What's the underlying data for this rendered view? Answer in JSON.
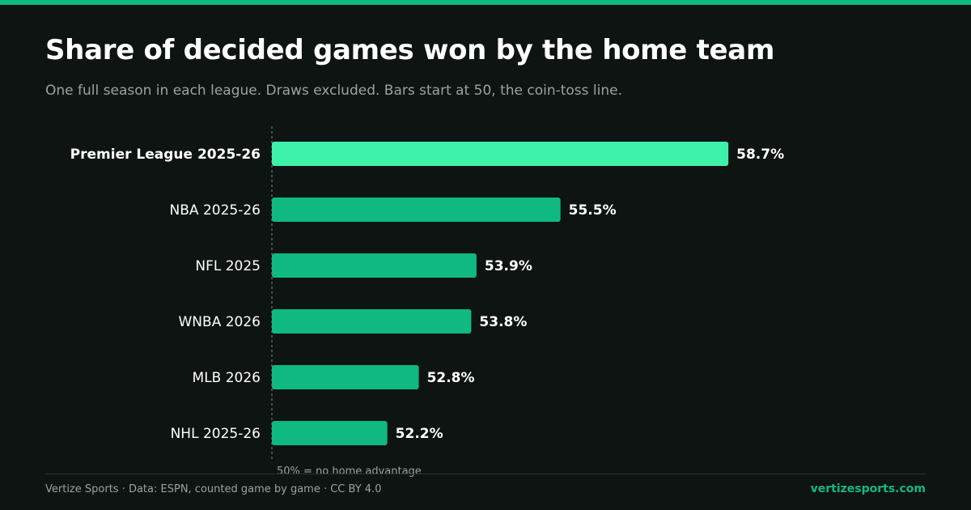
{
  "page": {
    "title": "Share of decided games won by the home team",
    "subtitle": "One full season in each league. Draws excluded. Bars start at 50, the coin-toss line.",
    "footer_left": "Vertize Sports · Data: ESPN, counted game by game · CC BY 4.0",
    "footer_right": "vertizesports.com"
  },
  "colors": {
    "background": "#0e1412",
    "accent": "#10b981",
    "highlight": "#3ef2ac",
    "bar": "#10b981",
    "text": "#ffffff",
    "muted": "#9aa3a0"
  },
  "chart_data": {
    "type": "bar",
    "orientation": "horizontal",
    "baseline": 50,
    "baseline_label": "50% = no home advantage",
    "xlim": [
      50,
      59.7
    ],
    "categories": [
      "Premier League 2025-26",
      "NBA 2025-26",
      "NFL 2025",
      "WNBA 2026",
      "MLB 2026",
      "NHL 2025-26"
    ],
    "values": [
      58.7,
      55.5,
      53.9,
      53.8,
      52.8,
      52.2
    ],
    "value_labels": [
      "58.7%",
      "55.5%",
      "53.9%",
      "53.8%",
      "52.8%",
      "52.2%"
    ],
    "highlight_index": 0
  }
}
